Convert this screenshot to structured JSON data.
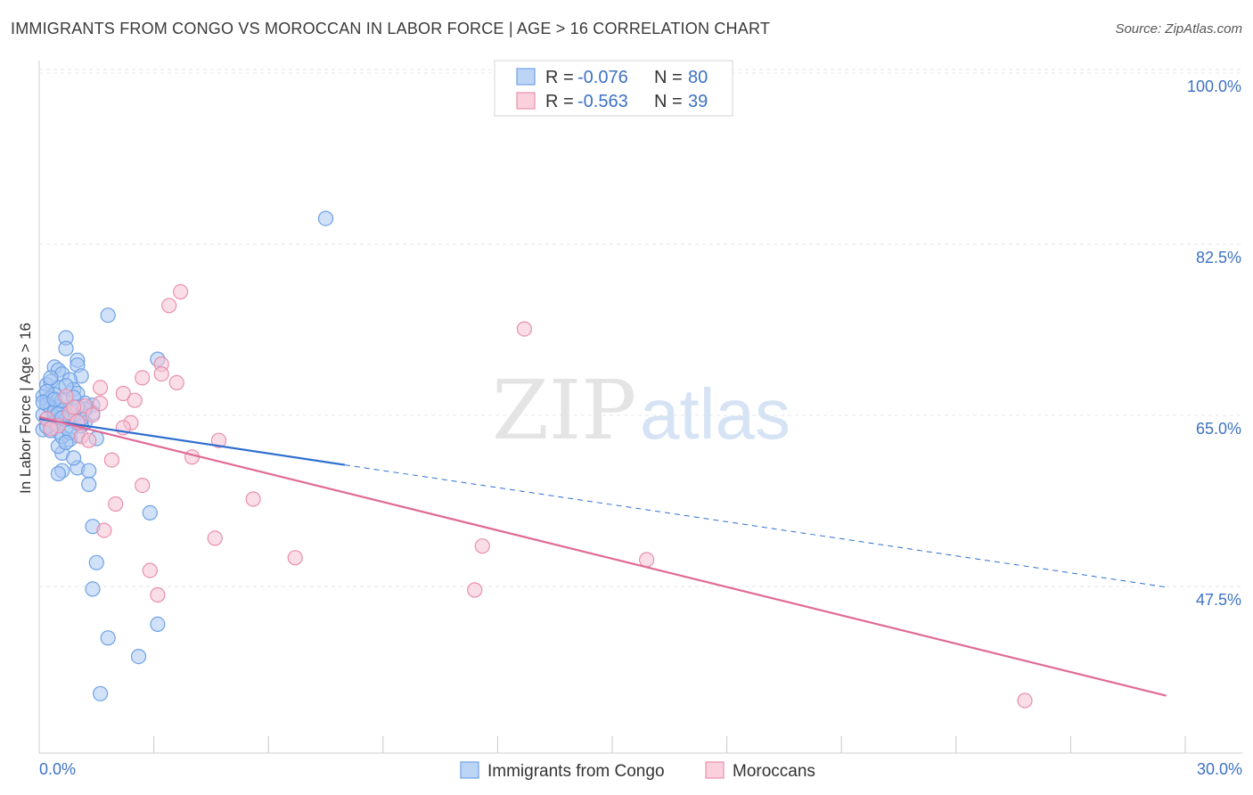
{
  "chart_data": {
    "type": "scatter",
    "title": "IMMIGRANTS FROM CONGO VS MOROCCAN IN LABOR FORCE | AGE > 16 CORRELATION CHART",
    "source": "Source: ZipAtlas.com",
    "xlabel": "",
    "ylabel": "In Labor Force | Age > 16",
    "xlim": [
      0,
      30
    ],
    "ylim": [
      32,
      102.5
    ],
    "x_tick_labels": [
      "0.0%",
      "30.0%"
    ],
    "y_ticks": [
      47.5,
      65.0,
      82.5,
      100.0
    ],
    "y_tick_labels": [
      "47.5%",
      "65.0%",
      "82.5%",
      "100.0%"
    ],
    "watermark": {
      "zip": "ZIP",
      "atlas": "atlas"
    },
    "legend": {
      "r_label": "R = ",
      "n_label": "N = ",
      "entries": [
        {
          "r": "-0.076",
          "n": "80"
        },
        {
          "r": "-0.563",
          "n": "39"
        }
      ]
    },
    "series": [
      {
        "name": "Immigrants from Congo",
        "color": "#6fa1e6",
        "fill": "#a9c8f2",
        "points": [
          [
            7.5,
            86.5
          ],
          [
            1.8,
            76.6
          ],
          [
            0.7,
            74.3
          ],
          [
            0.7,
            73.2
          ],
          [
            1.0,
            72.0
          ],
          [
            3.1,
            72.1
          ],
          [
            0.4,
            71.3
          ],
          [
            1.0,
            71.5
          ],
          [
            0.5,
            71.0
          ],
          [
            0.6,
            70.6
          ],
          [
            1.1,
            70.4
          ],
          [
            0.8,
            70.0
          ],
          [
            0.2,
            69.5
          ],
          [
            0.3,
            69.8
          ],
          [
            0.5,
            69.2
          ],
          [
            0.9,
            69.0
          ],
          [
            1.0,
            68.6
          ],
          [
            0.4,
            68.5
          ],
          [
            0.1,
            68.3
          ],
          [
            0.2,
            67.9
          ],
          [
            0.3,
            68.1
          ],
          [
            0.7,
            67.8
          ],
          [
            1.2,
            67.6
          ],
          [
            1.4,
            67.4
          ],
          [
            0.5,
            67.3
          ],
          [
            0.8,
            67.0
          ],
          [
            0.3,
            67.1
          ],
          [
            0.6,
            66.8
          ],
          [
            1.4,
            66.6
          ],
          [
            0.1,
            66.4
          ],
          [
            0.2,
            66.0
          ],
          [
            0.4,
            66.2
          ],
          [
            0.6,
            65.9
          ],
          [
            0.9,
            65.8
          ],
          [
            1.2,
            65.6
          ],
          [
            0.3,
            65.4
          ],
          [
            0.7,
            65.1
          ],
          [
            0.1,
            64.9
          ],
          [
            0.5,
            64.7
          ],
          [
            1.0,
            64.3
          ],
          [
            1.5,
            64.0
          ],
          [
            0.8,
            63.9
          ],
          [
            0.6,
            62.5
          ],
          [
            1.0,
            61.0
          ],
          [
            1.3,
            60.7
          ],
          [
            0.6,
            60.7
          ],
          [
            0.5,
            60.4
          ],
          [
            1.3,
            59.3
          ],
          [
            2.9,
            56.4
          ],
          [
            1.4,
            55.0
          ],
          [
            1.5,
            51.3
          ],
          [
            1.4,
            48.6
          ],
          [
            3.1,
            45.0
          ],
          [
            1.8,
            43.6
          ],
          [
            2.6,
            41.7
          ],
          [
            1.6,
            37.9
          ],
          [
            0.2,
            67.5
          ],
          [
            0.4,
            66.7
          ],
          [
            0.6,
            67.9
          ],
          [
            0.8,
            66.3
          ],
          [
            1.1,
            65.3
          ],
          [
            0.3,
            64.8
          ],
          [
            0.5,
            63.2
          ],
          [
            0.9,
            62.0
          ],
          [
            1.2,
            67.0
          ],
          [
            0.2,
            68.8
          ],
          [
            0.7,
            69.4
          ],
          [
            0.4,
            65.6
          ],
          [
            0.6,
            64.2
          ],
          [
            0.1,
            67.7
          ],
          [
            0.9,
            68.2
          ],
          [
            1.1,
            66.0
          ],
          [
            0.3,
            70.2
          ],
          [
            0.5,
            66.5
          ],
          [
            0.8,
            64.6
          ],
          [
            0.2,
            65.2
          ],
          [
            0.4,
            68.0
          ],
          [
            0.6,
            66.1
          ],
          [
            1.0,
            67.2
          ],
          [
            0.7,
            63.6
          ]
        ]
      },
      {
        "name": "Moroccans",
        "color": "#e98fad",
        "fill": "#f6c3d3",
        "points": [
          [
            3.7,
            79.0
          ],
          [
            3.4,
            77.6
          ],
          [
            12.7,
            75.2
          ],
          [
            3.2,
            71.6
          ],
          [
            3.2,
            70.6
          ],
          [
            2.7,
            70.2
          ],
          [
            3.6,
            69.7
          ],
          [
            1.6,
            69.2
          ],
          [
            2.2,
            68.6
          ],
          [
            2.5,
            67.9
          ],
          [
            1.6,
            67.6
          ],
          [
            1.2,
            67.3
          ],
          [
            0.8,
            66.6
          ],
          [
            0.2,
            66.0
          ],
          [
            2.4,
            65.6
          ],
          [
            2.2,
            65.1
          ],
          [
            1.1,
            64.2
          ],
          [
            1.3,
            63.8
          ],
          [
            4.7,
            63.8
          ],
          [
            4.0,
            62.1
          ],
          [
            1.9,
            61.8
          ],
          [
            2.7,
            59.2
          ],
          [
            5.6,
            57.8
          ],
          [
            2.0,
            57.3
          ],
          [
            1.7,
            54.6
          ],
          [
            4.6,
            53.8
          ],
          [
            11.6,
            53.0
          ],
          [
            6.7,
            51.8
          ],
          [
            15.9,
            51.6
          ],
          [
            2.9,
            50.5
          ],
          [
            3.1,
            48.0
          ],
          [
            11.4,
            48.5
          ],
          [
            25.8,
            37.2
          ],
          [
            0.5,
            65.3
          ],
          [
            0.9,
            67.2
          ],
          [
            1.4,
            66.4
          ],
          [
            0.3,
            65.0
          ],
          [
            0.7,
            68.3
          ],
          [
            1.0,
            65.7
          ]
        ]
      }
    ],
    "trend_lines": [
      {
        "series": "Immigrants from Congo",
        "color": "#2f6fd0",
        "solid": [
          [
            0,
            66.0
          ],
          [
            8,
            61.3
          ]
        ],
        "dashed": [
          [
            8,
            61.3
          ],
          [
            29.5,
            48.8
          ]
        ]
      },
      {
        "series": "Moroccans",
        "color": "#e06a96",
        "solid": [
          [
            0,
            66.2
          ],
          [
            29.5,
            37.7
          ]
        ]
      }
    ]
  }
}
